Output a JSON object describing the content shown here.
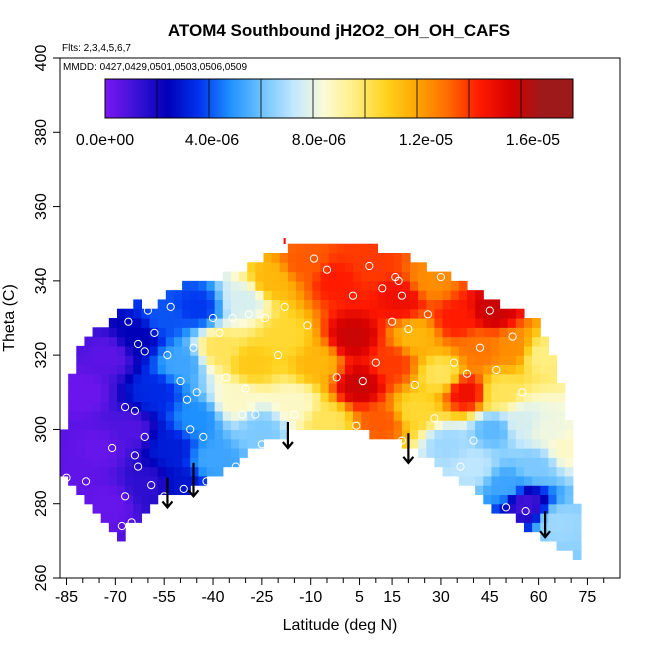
{
  "chart_data": {
    "type": "heatmap",
    "title": "ATOM4 Southbound jH2O2_OH_OH_CAFS",
    "flights_label": "Flts: 2,3,4,5,6,7",
    "dates_label": "MMDD: 0427,0429,0501,0503,0506,0509",
    "xlabel": "Latitude (deg N)",
    "ylabel": "Theta (C)",
    "xlim": [
      -87,
      85
    ],
    "ylim": [
      260,
      400
    ],
    "x_ticks": [
      "-85",
      "-70",
      "-55",
      "-40",
      "-25",
      "-10",
      "5",
      "15",
      "30",
      "45",
      "60",
      "75"
    ],
    "x_tick_values": [
      -85,
      -70,
      -55,
      -40,
      -25,
      -10,
      5,
      15,
      30,
      45,
      60,
      75
    ],
    "x_minor_ticks": [
      -80,
      -75,
      -65,
      -60,
      -50,
      -45,
      -35,
      -30,
      -20,
      -15,
      -5,
      0,
      10,
      20,
      25,
      35,
      40,
      50,
      55,
      65,
      70,
      80
    ],
    "y_ticks": [
      "260",
      "280",
      "300",
      "320",
      "340",
      "360",
      "380",
      "400"
    ],
    "y_tick_values": [
      260,
      280,
      300,
      320,
      340,
      360,
      380,
      400
    ],
    "colorbar": {
      "min": 0,
      "max": 1.75e-05,
      "tick_labels": [
        "0.0e+00",
        "4.0e-06",
        "8.0e-06",
        "1.2e-05",
        "1.6e-05"
      ],
      "tick_values": [
        0,
        4e-06,
        8e-06,
        1.2e-05,
        1.6e-05
      ],
      "colors": [
        "#7b16f4",
        "#3a12d6",
        "#0000b8",
        "#0033ee",
        "#1e90ff",
        "#6cc2ff",
        "#bfe6ff",
        "#fbfbd8",
        "#ffee80",
        "#ffd21e",
        "#ffa500",
        "#ff6a00",
        "#ff1a00",
        "#d50000",
        "#9e1a1a"
      ]
    },
    "lower_boundary": [
      [
        -87,
        287
      ],
      [
        -84,
        287
      ],
      [
        -82,
        285
      ],
      [
        -80,
        282
      ],
      [
        -78,
        280
      ],
      [
        -76,
        278
      ],
      [
        -74,
        276
      ],
      [
        -72,
        274
      ],
      [
        -70,
        271
      ],
      [
        -69,
        269
      ],
      [
        -67,
        273
      ],
      [
        -62,
        277
      ],
      [
        -57,
        281
      ],
      [
        -52,
        283
      ],
      [
        -47,
        284
      ],
      [
        -42,
        286
      ],
      [
        -37,
        289
      ],
      [
        -32,
        292
      ],
      [
        -27,
        295
      ],
      [
        -22,
        297
      ],
      [
        -17,
        299
      ],
      [
        -12,
        300
      ],
      [
        -7,
        301
      ],
      [
        -2,
        301
      ],
      [
        3,
        300
      ],
      [
        8,
        299
      ],
      [
        13,
        298
      ],
      [
        18,
        296
      ],
      [
        23,
        294
      ],
      [
        28,
        291
      ],
      [
        33,
        288
      ],
      [
        38,
        285
      ],
      [
        43,
        281
      ],
      [
        48,
        278
      ],
      [
        53,
        276
      ],
      [
        58,
        273
      ],
      [
        63,
        270
      ],
      [
        67,
        268
      ],
      [
        72,
        265
      ]
    ],
    "upper_boundary": [
      [
        -87,
        287
      ],
      [
        -86,
        298
      ],
      [
        -85,
        307
      ],
      [
        -83,
        317
      ],
      [
        -80,
        323
      ],
      [
        -75,
        327
      ],
      [
        -71,
        330
      ],
      [
        -68,
        333
      ],
      [
        -63,
        334
      ],
      [
        -58,
        333
      ],
      [
        -54,
        336
      ],
      [
        -48,
        339
      ],
      [
        -42,
        340
      ],
      [
        -35,
        342
      ],
      [
        -30,
        344
      ],
      [
        -25,
        346
      ],
      [
        -20,
        348
      ],
      [
        -15,
        349
      ],
      [
        -10,
        350
      ],
      [
        -5,
        350
      ],
      [
        0,
        350
      ],
      [
        5,
        350
      ],
      [
        10,
        349
      ],
      [
        15,
        348
      ],
      [
        20,
        346
      ],
      [
        25,
        344
      ],
      [
        30,
        342
      ],
      [
        35,
        340
      ],
      [
        40,
        338
      ],
      [
        45,
        335
      ],
      [
        50,
        333
      ],
      [
        55,
        331
      ],
      [
        60,
        329
      ],
      [
        63,
        324
      ],
      [
        66,
        316
      ],
      [
        68,
        308
      ],
      [
        70,
        298
      ],
      [
        71,
        288
      ],
      [
        72,
        276
      ],
      [
        72,
        265
      ]
    ],
    "field": [
      {
        "lat": -82,
        "theta": 285,
        "value": 5e-07
      },
      {
        "lat": -80,
        "theta": 310,
        "value": 3e-07
      },
      {
        "lat": -75,
        "theta": 295,
        "value": 4e-07
      },
      {
        "lat": -72,
        "theta": 280,
        "value": 4e-07
      },
      {
        "lat": -72,
        "theta": 320,
        "value": 6e-07
      },
      {
        "lat": -66,
        "theta": 300,
        "value": 8e-07
      },
      {
        "lat": -63,
        "theta": 325,
        "value": 2.5e-06
      },
      {
        "lat": -60,
        "theta": 285,
        "value": 1.5e-06
      },
      {
        "lat": -58,
        "theta": 310,
        "value": 3.5e-06
      },
      {
        "lat": -55,
        "theta": 330,
        "value": 4.2e-06
      },
      {
        "lat": -53,
        "theta": 295,
        "value": 3.2e-06
      },
      {
        "lat": -50,
        "theta": 285,
        "value": 3e-06
      },
      {
        "lat": -50,
        "theta": 318,
        "value": 5.5e-06
      },
      {
        "lat": -45,
        "theta": 333,
        "value": 3.8e-06
      },
      {
        "lat": -45,
        "theta": 303,
        "value": 5e-06
      },
      {
        "lat": -40,
        "theta": 292,
        "value": 5.5e-06
      },
      {
        "lat": -38,
        "theta": 322,
        "value": 1.05e-05
      },
      {
        "lat": -33,
        "theta": 308,
        "value": 9e-06
      },
      {
        "lat": -30,
        "theta": 335,
        "value": 8e-06
      },
      {
        "lat": -28,
        "theta": 318,
        "value": 1.15e-05
      },
      {
        "lat": -25,
        "theta": 300,
        "value": 6.5e-06
      },
      {
        "lat": -22,
        "theta": 340,
        "value": 1.2e-05
      },
      {
        "lat": -18,
        "theta": 325,
        "value": 1.1e-05
      },
      {
        "lat": -15,
        "theta": 307,
        "value": 9e-06
      },
      {
        "lat": -12,
        "theta": 345,
        "value": 1.4e-05
      },
      {
        "lat": -8,
        "theta": 318,
        "value": 1.2e-05
      },
      {
        "lat": -5,
        "theta": 302,
        "value": 1.05e-05
      },
      {
        "lat": -2,
        "theta": 340,
        "value": 1.5e-05
      },
      {
        "lat": 3,
        "theta": 325,
        "value": 1.65e-05
      },
      {
        "lat": 5,
        "theta": 312,
        "value": 1.65e-05
      },
      {
        "lat": 8,
        "theta": 345,
        "value": 1.45e-05
      },
      {
        "lat": 12,
        "theta": 302,
        "value": 1.4e-05
      },
      {
        "lat": 15,
        "theta": 318,
        "value": 1.45e-05
      },
      {
        "lat": 18,
        "theta": 335,
        "value": 1.55e-05
      },
      {
        "lat": 22,
        "theta": 325,
        "value": 1.2e-05
      },
      {
        "lat": 22,
        "theta": 305,
        "value": 1.1e-05
      },
      {
        "lat": 27,
        "theta": 340,
        "value": 1.3e-05
      },
      {
        "lat": 30,
        "theta": 315,
        "value": 1.05e-05
      },
      {
        "lat": 32,
        "theta": 296,
        "value": 7e-06
      },
      {
        "lat": 35,
        "theta": 330,
        "value": 1.5e-05
      },
      {
        "lat": 38,
        "theta": 310,
        "value": 1.55e-05
      },
      {
        "lat": 40,
        "theta": 290,
        "value": 7.5e-06
      },
      {
        "lat": 42,
        "theta": 322,
        "value": 1.35e-05
      },
      {
        "lat": 46,
        "theta": 332,
        "value": 1.65e-05
      },
      {
        "lat": 46,
        "theta": 300,
        "value": 6e-06
      },
      {
        "lat": 48,
        "theta": 310,
        "value": 1.05e-05
      },
      {
        "lat": 50,
        "theta": 285,
        "value": 5.5e-06
      },
      {
        "lat": 52,
        "theta": 322,
        "value": 1.3e-05
      },
      {
        "lat": 55,
        "theta": 302,
        "value": 8e-06
      },
      {
        "lat": 56,
        "theta": 280,
        "value": 1.2e-06
      },
      {
        "lat": 59,
        "theta": 290,
        "value": 6.5e-06
      },
      {
        "lat": 61,
        "theta": 320,
        "value": 1e-05
      },
      {
        "lat": 63,
        "theta": 300,
        "value": 8.5e-06
      },
      {
        "lat": 66,
        "theta": 275,
        "value": 7e-06
      },
      {
        "lat": 69,
        "theta": 295,
        "value": 9e-06
      }
    ],
    "observations": [
      {
        "lat": -85,
        "theta": 287
      },
      {
        "lat": -79,
        "theta": 286
      },
      {
        "lat": -71,
        "theta": 295
      },
      {
        "lat": -68,
        "theta": 274
      },
      {
        "lat": -67,
        "theta": 282
      },
      {
        "lat": -67,
        "theta": 306
      },
      {
        "lat": -66,
        "theta": 329
      },
      {
        "lat": -65,
        "theta": 275
      },
      {
        "lat": -64,
        "theta": 293
      },
      {
        "lat": -64,
        "theta": 305
      },
      {
        "lat": -63,
        "theta": 290
      },
      {
        "lat": -63,
        "theta": 323
      },
      {
        "lat": -61,
        "theta": 298
      },
      {
        "lat": -61,
        "theta": 321
      },
      {
        "lat": -60,
        "theta": 332
      },
      {
        "lat": -59,
        "theta": 285
      },
      {
        "lat": -58,
        "theta": 326
      },
      {
        "lat": -56,
        "theta": 278
      },
      {
        "lat": -55,
        "theta": 282
      },
      {
        "lat": -54,
        "theta": 320
      },
      {
        "lat": -53,
        "theta": 333
      },
      {
        "lat": -50,
        "theta": 313
      },
      {
        "lat": -49,
        "theta": 284
      },
      {
        "lat": -48,
        "theta": 308
      },
      {
        "lat": -47,
        "theta": 300
      },
      {
        "lat": -46,
        "theta": 322
      },
      {
        "lat": -45,
        "theta": 310
      },
      {
        "lat": -43,
        "theta": 298
      },
      {
        "lat": -42,
        "theta": 286
      },
      {
        "lat": -40,
        "theta": 330
      },
      {
        "lat": -38,
        "theta": 326
      },
      {
        "lat": -36,
        "theta": 314
      },
      {
        "lat": -34,
        "theta": 330
      },
      {
        "lat": -33,
        "theta": 290
      },
      {
        "lat": -31,
        "theta": 304
      },
      {
        "lat": -30,
        "theta": 311
      },
      {
        "lat": -29,
        "theta": 331
      },
      {
        "lat": -27,
        "theta": 304
      },
      {
        "lat": -25,
        "theta": 296
      },
      {
        "lat": -24,
        "theta": 330
      },
      {
        "lat": -20,
        "theta": 320
      },
      {
        "lat": -18,
        "theta": 333
      },
      {
        "lat": -15,
        "theta": 304
      },
      {
        "lat": -11,
        "theta": 328
      },
      {
        "lat": -9,
        "theta": 346
      },
      {
        "lat": -5,
        "theta": 343
      },
      {
        "lat": -2,
        "theta": 314
      },
      {
        "lat": 3,
        "theta": 336
      },
      {
        "lat": 4,
        "theta": 301
      },
      {
        "lat": 6,
        "theta": 313
      },
      {
        "lat": 8,
        "theta": 344
      },
      {
        "lat": 10,
        "theta": 318
      },
      {
        "lat": 12,
        "theta": 338
      },
      {
        "lat": 15,
        "theta": 329
      },
      {
        "lat": 16,
        "theta": 341
      },
      {
        "lat": 17,
        "theta": 340
      },
      {
        "lat": 18,
        "theta": 336
      },
      {
        "lat": 18,
        "theta": 297
      },
      {
        "lat": 20,
        "theta": 327
      },
      {
        "lat": 22,
        "theta": 312
      },
      {
        "lat": 26,
        "theta": 331
      },
      {
        "lat": 28,
        "theta": 303
      },
      {
        "lat": 30,
        "theta": 341
      },
      {
        "lat": 34,
        "theta": 318
      },
      {
        "lat": 36,
        "theta": 290
      },
      {
        "lat": 38,
        "theta": 315
      },
      {
        "lat": 40,
        "theta": 297
      },
      {
        "lat": 42,
        "theta": 322
      },
      {
        "lat": 45,
        "theta": 332
      },
      {
        "lat": 47,
        "theta": 316
      },
      {
        "lat": 50,
        "theta": 279
      },
      {
        "lat": 52,
        "theta": 325
      },
      {
        "lat": 55,
        "theta": 310
      },
      {
        "lat": 56,
        "theta": 278
      },
      {
        "lat": 60,
        "theta": 335
      }
    ],
    "marker_arrows": [
      {
        "lat": -54,
        "theta_top": 287,
        "theta_tip": 279
      },
      {
        "lat": -46,
        "theta_top": 291,
        "theta_tip": 282
      },
      {
        "lat": -17,
        "theta_top": 302,
        "theta_tip": 295
      },
      {
        "lat": 20,
        "theta_top": 299,
        "theta_tip": 291
      },
      {
        "lat": 62,
        "theta_top": 278,
        "theta_tip": 271
      }
    ],
    "top_marker": {
      "lat": -18,
      "theta": 351
    }
  }
}
